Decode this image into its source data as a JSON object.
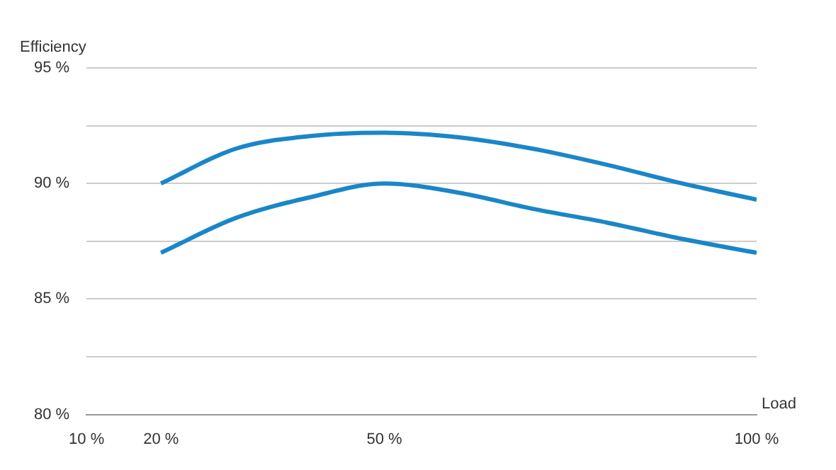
{
  "chart_data": {
    "type": "line",
    "xlabel": "Load",
    "ylabel": "Efficiency",
    "x": [
      20,
      30,
      40,
      50,
      60,
      70,
      80,
      90,
      100
    ],
    "series": [
      {
        "color": "#1a86c8",
        "values": [
          90.0,
          91.5,
          92.05,
          92.2,
          92.0,
          91.5,
          90.8,
          90.0,
          89.3
        ]
      },
      {
        "color": "#1a86c8",
        "values": [
          87.0,
          88.5,
          89.4,
          90.0,
          89.6,
          88.9,
          88.3,
          87.6,
          87.0
        ]
      }
    ],
    "xlim": [
      10,
      100
    ],
    "xticks": [
      {
        "value": 10,
        "label": "10 %"
      },
      {
        "value": 20,
        "label": "20 %"
      },
      {
        "value": 50,
        "label": "50 %"
      },
      {
        "value": 100,
        "label": "100 %"
      }
    ],
    "ylim": [
      80,
      95
    ],
    "yticks": [
      {
        "value": 80,
        "label": "80 %"
      },
      {
        "value": 82.5,
        "label": null
      },
      {
        "value": 85,
        "label": "85 %"
      },
      {
        "value": 87.5,
        "label": null
      },
      {
        "value": 90,
        "label": "90 %"
      },
      {
        "value": 92.5,
        "label": null
      },
      {
        "value": 95,
        "label": "95 %"
      }
    ],
    "grid": "y",
    "marker": "none",
    "line_style": "solid",
    "legend": false
  }
}
